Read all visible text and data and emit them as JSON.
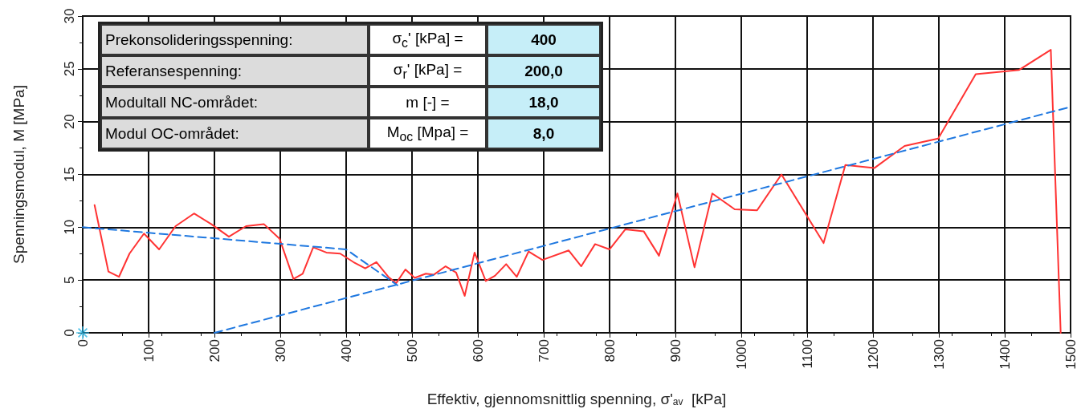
{
  "chart_data": {
    "type": "line",
    "xlabel": "Effektiv, gjennomsnittlig spenning, σ'$_{av}$  [kPa]",
    "ylabel": "Spenningsmodul, M [MPa]",
    "xlim": [
      0,
      1500
    ],
    "xticks": [
      0,
      100,
      200,
      300,
      400,
      500,
      600,
      700,
      800,
      900,
      1000,
      1100,
      1200,
      1300,
      1400,
      1500
    ],
    "ylim": [
      0,
      30
    ],
    "yticks": [
      0,
      5,
      10,
      15,
      20,
      25,
      30
    ],
    "grid": true,
    "marker": "none",
    "series": [
      {
        "color": "#ff3333",
        "line_style": "solid",
        "x": [
          18,
          39,
          55,
          71,
          93,
          116,
          141,
          169,
          195,
          222,
          248,
          275,
          299,
          320,
          334,
          350,
          370,
          391,
          411,
          429,
          446,
          464,
          476,
          490,
          504,
          521,
          533,
          551,
          567,
          580,
          595,
          612,
          626,
          643,
          659,
          677,
          698,
          738,
          757,
          778,
          800,
          824,
          852,
          875,
          903,
          929,
          956,
          990,
          1024,
          1061,
          1125,
          1158,
          1202,
          1248,
          1299,
          1356,
          1422,
          1470,
          1485
        ],
        "values": [
          12.1,
          5.8,
          5.3,
          7.5,
          9.4,
          7.9,
          10.1,
          11.3,
          10.3,
          9.1,
          10.1,
          10.3,
          8.9,
          5.1,
          5.6,
          8.1,
          7.6,
          7.5,
          6.7,
          6.1,
          6.7,
          5.3,
          4.7,
          6.0,
          5.2,
          5.6,
          5.5,
          6.3,
          5.7,
          3.5,
          7.6,
          4.9,
          5.4,
          6.5,
          5.3,
          7.7,
          6.9,
          7.8,
          6.3,
          8.4,
          7.9,
          9.8,
          9.6,
          7.3,
          13.2,
          6.2,
          13.2,
          11.7,
          11.6,
          15.0,
          8.5,
          15.9,
          15.6,
          17.7,
          18.4,
          24.5,
          24.9,
          26.8,
          0
        ]
      },
      {
        "color": "#1f78e0",
        "line_style": "dashed",
        "x": [
          0,
          400,
          478
        ],
        "values": [
          10,
          7.9,
          4.5
        ]
      },
      {
        "color": "#1f78e0",
        "line_style": "dashed",
        "x": [
          200,
          1500
        ],
        "values": [
          0,
          21.4
        ]
      },
      {
        "type": "scatter",
        "marker": "cross",
        "color": "#27b6e6",
        "x": [
          0
        ],
        "values": [
          0
        ]
      }
    ],
    "annotations": [
      "Prekonsolideringsspenning:",
      "σ$_{c}$' [kPa] =",
      "400",
      "Referansespenning:",
      "σ$_{r}$' [kPa] =",
      "200,0",
      "Modultall NC-området:",
      "m [-] =",
      "18,0",
      "Modul OC-området:",
      "M$_{oc}$ [Mpa] =",
      "8,0"
    ]
  }
}
